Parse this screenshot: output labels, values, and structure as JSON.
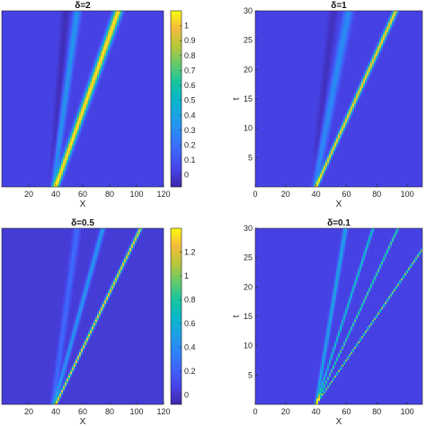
{
  "chart_data": [
    {
      "type": "heatmap",
      "title": "δ=2",
      "xlabel": "X",
      "ylabel": "",
      "xlim": [
        0,
        120
      ],
      "ylim": [
        0,
        30
      ],
      "x_ticks": [
        20,
        40,
        60,
        80,
        100,
        120
      ],
      "y_ticks": [],
      "colorbar": {
        "range": [
          -0.08,
          1.1
        ],
        "ticks": [
          0,
          0.1,
          0.2,
          0.3,
          0.4,
          0.5,
          0.6,
          0.7,
          0.8,
          0.9,
          1
        ]
      },
      "features": [
        {
          "x0": 40,
          "speed": 1.55,
          "width": 2.2,
          "peak": 1.05
        },
        {
          "x0": 38,
          "speed": 0.6,
          "width": 2.0,
          "peak": 0.32
        },
        {
          "x0": 37,
          "speed": 0.35,
          "width": 2.2,
          "peak": -0.08
        }
      ]
    },
    {
      "type": "heatmap",
      "title": "δ=1",
      "xlabel": "X",
      "ylabel": "t",
      "xlim": [
        0,
        110
      ],
      "ylim": [
        0,
        30
      ],
      "x_ticks": [
        0,
        20,
        40,
        60,
        80,
        100
      ],
      "y_ticks": [
        5,
        10,
        15,
        20,
        25,
        30
      ],
      "colorbar": null,
      "features": [
        {
          "x0": 40,
          "speed": 1.75,
          "width": 1.2,
          "peak": 1.0
        },
        {
          "x0": 39,
          "speed": 0.75,
          "width": 2.2,
          "peak": 0.28
        },
        {
          "x0": 38,
          "speed": 0.45,
          "width": 2.0,
          "peak": -0.07
        }
      ]
    },
    {
      "type": "heatmap",
      "title": "δ=0.5",
      "xlabel": "X",
      "ylabel": "",
      "xlim": [
        0,
        120
      ],
      "ylim": [
        0,
        30
      ],
      "x_ticks": [
        20,
        40,
        60,
        80,
        100,
        120
      ],
      "y_ticks": [],
      "colorbar": {
        "range": [
          -0.08,
          1.4
        ],
        "ticks": [
          0,
          0.2,
          0.4,
          0.6,
          0.8,
          1,
          1.2
        ]
      },
      "features": [
        {
          "x0": 40,
          "speed": 2.1,
          "width": 0.9,
          "peak": 1.25
        },
        {
          "x0": 39,
          "speed": 1.2,
          "width": 1.3,
          "peak": 0.45
        },
        {
          "x0": 38,
          "speed": 0.6,
          "width": 1.8,
          "peak": 0.22
        }
      ]
    },
    {
      "type": "heatmap",
      "title": "δ=0.1",
      "xlabel": "X",
      "ylabel": "t",
      "xlim": [
        0,
        110
      ],
      "ylim": [
        0,
        30
      ],
      "x_ticks": [
        0,
        20,
        40,
        60,
        80,
        100
      ],
      "y_ticks": [
        5,
        10,
        15,
        20,
        25,
        30
      ],
      "colorbar": null,
      "features": [
        {
          "x0": 40,
          "speed": 2.65,
          "width": 0.5,
          "peak": 0.8
        },
        {
          "x0": 40,
          "speed": 1.8,
          "width": 0.5,
          "peak": 0.7
        },
        {
          "x0": 40,
          "speed": 1.25,
          "width": 0.6,
          "peak": 0.55
        },
        {
          "x0": 40,
          "speed": 0.65,
          "width": 1.0,
          "peak": 0.4
        }
      ]
    }
  ]
}
